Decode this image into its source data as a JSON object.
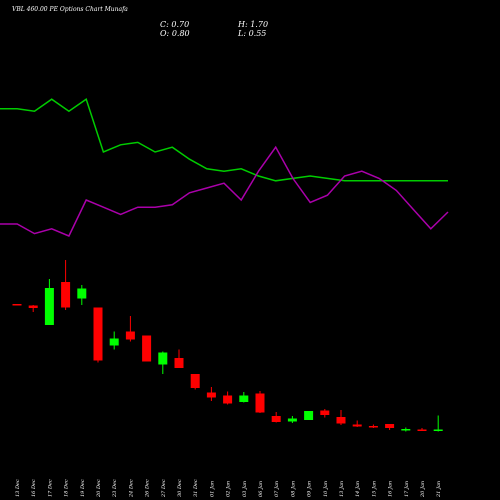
{
  "header": {
    "title": "VBL 460.00 PE Options Chart Munafa",
    "open_label": "O:",
    "open": "0.80",
    "close_label": "C:",
    "close": "0.70",
    "high_label": "H:",
    "high": "1.70",
    "low_label": "L:",
    "low": "0.55"
  },
  "colors": {
    "background": "#000000",
    "green_line": "#00cc00",
    "purple_line": "#aa00aa",
    "bull": "#00ff00",
    "bear": "#ff0000",
    "text": "#ffffff"
  },
  "chart_data": {
    "type": "candlestick",
    "categories": [
      "13 Dec",
      "16 Dec",
      "17 Dec",
      "18 Dec",
      "19 Dec",
      "20 Dec",
      "23 Dec",
      "24 Dec",
      "26 Dec",
      "27 Dec",
      "30 Dec",
      "31 Dec",
      "01 Jan",
      "02 Jan",
      "03 Jan",
      "06 Jan",
      "07 Jan",
      "08 Jan",
      "09 Jan",
      "10 Jan",
      "13 Jan",
      "14 Jan",
      "15 Jan",
      "16 Jan",
      "17 Jan",
      "20 Jan",
      "21 Jan"
    ],
    "candles": [
      {
        "open": 11.2,
        "high": 11.2,
        "low": 11.0,
        "close": 11.1
      },
      {
        "open": 10.9,
        "high": 11.0,
        "low": 9.6,
        "close": 10.4
      },
      {
        "open": 7.0,
        "high": 16.2,
        "low": 7.0,
        "close": 14.4
      },
      {
        "open": 15.6,
        "high": 20.0,
        "low": 10.0,
        "close": 10.5
      },
      {
        "open": 12.3,
        "high": 15.0,
        "low": 11.0,
        "close": 14.3
      },
      {
        "open": 10.5,
        "high": 10.5,
        "low": -0.5,
        "close": -0.1
      },
      {
        "open": 2.9,
        "high": 5.7,
        "low": 2.1,
        "close": 4.3
      },
      {
        "open": 5.7,
        "high": 8.8,
        "low": 3.7,
        "close": 4.1
      },
      {
        "open": 4.9,
        "high": 4.9,
        "low": -0.3,
        "close": -0.3
      },
      {
        "open": -0.9,
        "high": 1.7,
        "low": -2.8,
        "close": 1.5
      },
      {
        "open": 0.4,
        "high": 2.1,
        "low": -1.5,
        "close": -1.6
      },
      {
        "open": -2.8,
        "high": -2.8,
        "low": -5.9,
        "close": -5.6
      },
      {
        "open": -6.5,
        "high": -5.4,
        "low": -8.2,
        "close": -7.5
      },
      {
        "open": -7.1,
        "high": -6.3,
        "low": -8.9,
        "close": -8.7
      },
      {
        "open": -8.4,
        "high": -6.4,
        "low": -8.5,
        "close": -7.1
      },
      {
        "open": -6.7,
        "high": -6.2,
        "low": -10.6,
        "close": -10.5
      },
      {
        "open": -11.2,
        "high": -10.4,
        "low": -12.5,
        "close": -12.4
      },
      {
        "open": -12.3,
        "high": -11.2,
        "low": -12.6,
        "close": -11.7
      },
      {
        "open": -12.0,
        "high": -10.2,
        "low": -12.0,
        "close": -10.2
      },
      {
        "open": -10.1,
        "high": -9.8,
        "low": -11.5,
        "close": -11.0
      },
      {
        "open": -11.4,
        "high": -10.0,
        "low": -13.0,
        "close": -12.7
      },
      {
        "open": -12.9,
        "high": -12.1,
        "low": -13.4,
        "close": -13.3
      },
      {
        "open": -13.2,
        "high": -12.9,
        "low": -13.6,
        "close": -13.5
      },
      {
        "open": -12.8,
        "high": -12.8,
        "low": -14.0,
        "close": -13.6
      },
      {
        "open": -13.9,
        "high": -13.5,
        "low": -14.3,
        "close": -13.8
      },
      {
        "open": -13.9,
        "high": -13.6,
        "low": -14.2,
        "close": -14.0
      },
      {
        "open": -14.2,
        "high": -11.1,
        "low": -14.3,
        "close": -13.9
      }
    ],
    "series": [
      {
        "values": [
          38,
          38,
          37,
          42,
          37,
          42,
          20,
          23,
          24,
          20,
          22,
          17,
          13,
          12,
          13,
          10,
          8,
          9,
          10,
          9,
          8,
          8,
          8,
          8,
          8,
          8,
          8
        ]
      },
      {
        "values": [
          -10,
          -10,
          -14,
          -12,
          -15,
          0,
          -3,
          -6,
          -3,
          -3,
          -2,
          3,
          5,
          7,
          0,
          12,
          22,
          9,
          -1,
          2,
          10,
          12,
          9,
          4,
          -4,
          -12,
          -5
        ]
      }
    ]
  }
}
